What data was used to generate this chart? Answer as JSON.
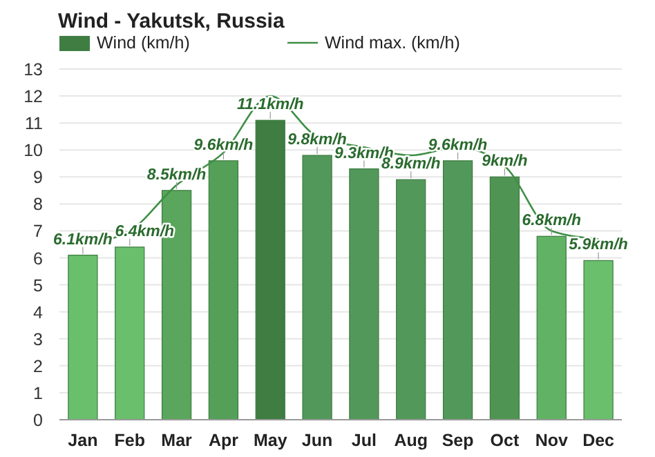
{
  "chart_data": {
    "type": "bar",
    "title": "Wind - Yakutsk, Russia",
    "categories": [
      "Jan",
      "Feb",
      "Mar",
      "Apr",
      "May",
      "Jun",
      "Jul",
      "Aug",
      "Sep",
      "Oct",
      "Nov",
      "Dec"
    ],
    "series": [
      {
        "name": "Wind (km/h)",
        "color": "#3f7d43",
        "colors": [
          "#6abf6c",
          "#6abf6c",
          "#5aa65c",
          "#55a058",
          "#3f7d43",
          "#52985a",
          "#52985a",
          "#52985a",
          "#52985a",
          "#4f9453",
          "#62b265",
          "#6abf6c"
        ],
        "values": [
          6.1,
          6.4,
          8.5,
          9.6,
          11.1,
          9.8,
          9.3,
          8.9,
          9.6,
          9,
          6.8,
          5.9
        ],
        "value_labels": [
          "6.1km/h",
          "6.4km/h",
          "8.5km/h",
          "9.6km/h",
          "11.1km/h",
          "9.8km/h",
          "9.3km/h",
          "8.9km/h",
          "9.6km/h",
          "9km/h",
          "6.8km/h",
          "5.9km/h"
        ]
      },
      {
        "name": "Wind max. (km/h)",
        "type": "line",
        "color": "#3f8f45",
        "values": [
          6.5,
          7.0,
          8.7,
          9.9,
          12.0,
          10.5,
          10.1,
          9.8,
          10.1,
          9.4,
          7.0,
          6.7
        ]
      }
    ],
    "ylim": [
      0,
      13
    ],
    "yticks": [
      0,
      1,
      2,
      3,
      4,
      5,
      6,
      7,
      8,
      9,
      10,
      11,
      12,
      13
    ],
    "grid": "y",
    "legend": "top",
    "marker": "none"
  }
}
